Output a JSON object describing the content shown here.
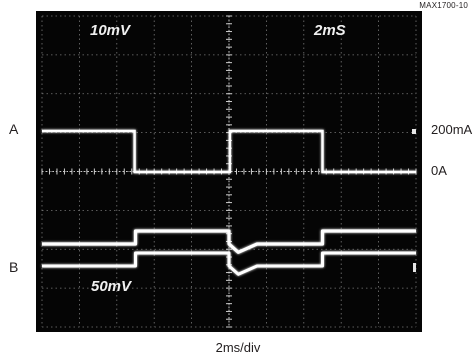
{
  "figure_id": "MAX1700-10",
  "chart_data": {
    "type": "line",
    "trace_labels": [
      "A",
      "B"
    ],
    "screen_settings": {
      "top_left": "10mV",
      "top_right": "2mS",
      "bottom_left": "50mV"
    },
    "right_scale": {
      "high": "200mA",
      "low": "0A"
    },
    "xlabel": "2ms/div",
    "divisions": {
      "x": 10,
      "y": 8
    },
    "xlim": [
      0,
      20
    ],
    "series": [
      {
        "label": "A",
        "x": [
          0,
          4.95,
          4.95,
          10.05,
          10.05,
          15.0,
          15.0,
          20
        ],
        "y": [
          200,
          200,
          0,
          0,
          200,
          200,
          0,
          0
        ]
      },
      {
        "label": "B",
        "x": [
          0,
          5.0,
          5.0,
          10.0,
          10.0,
          10.5,
          11.5,
          15.0,
          15.0,
          20
        ],
        "y": [
          0,
          0,
          1,
          1,
          0,
          -0.25,
          0,
          0,
          1,
          1
        ]
      }
    ]
  }
}
